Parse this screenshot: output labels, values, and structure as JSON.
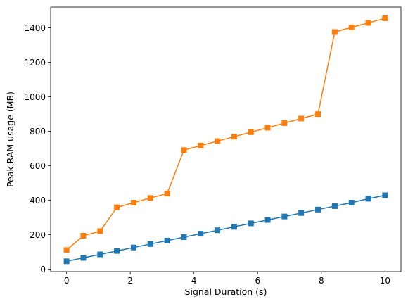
{
  "chart_data": {
    "type": "line",
    "title": "",
    "xlabel": "Signal Duration (s)",
    "ylabel": "Peak RAM usage (MB)",
    "xlim": [
      -0.5,
      10.5
    ],
    "ylim": [
      -15,
      1520
    ],
    "xticks": [
      0,
      2,
      4,
      6,
      8,
      10
    ],
    "yticks": [
      0,
      200,
      400,
      600,
      800,
      1000,
      1200,
      1400
    ],
    "grid": false,
    "legend": "none",
    "marker": "square",
    "series": [
      {
        "color": "#1f77b4",
        "x": [
          0.0,
          0.526,
          1.053,
          1.579,
          2.105,
          2.632,
          3.158,
          3.684,
          4.211,
          4.737,
          5.263,
          5.789,
          6.316,
          6.842,
          7.368,
          7.895,
          8.421,
          8.947,
          9.474,
          10.0
        ],
        "y": [
          45,
          65,
          85,
          105,
          125,
          145,
          165,
          185,
          205,
          225,
          245,
          265,
          285,
          305,
          325,
          345,
          365,
          385,
          408,
          428
        ]
      },
      {
        "color": "#ff7f0e",
        "x": [
          0.0,
          0.526,
          1.053,
          1.579,
          2.105,
          2.632,
          3.158,
          3.684,
          4.211,
          4.737,
          5.263,
          5.789,
          6.316,
          6.842,
          7.368,
          7.895,
          8.421,
          8.947,
          9.474,
          10.0
        ],
        "y": [
          110,
          193,
          220,
          358,
          385,
          412,
          438,
          690,
          716,
          742,
          768,
          794,
          820,
          847,
          873,
          899,
          1375,
          1402,
          1428,
          1455
        ]
      }
    ]
  }
}
